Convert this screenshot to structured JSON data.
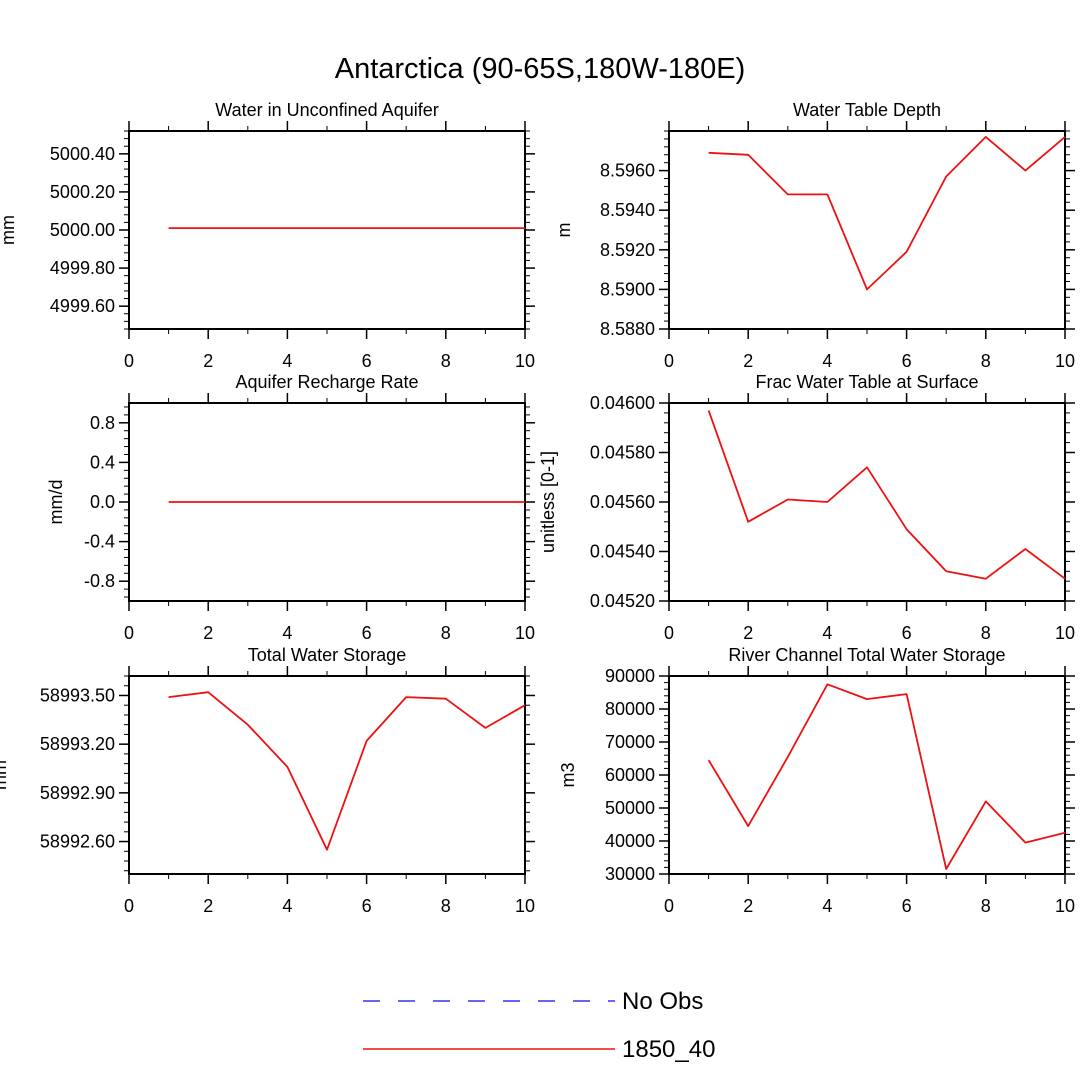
{
  "figure": {
    "title": "Antarctica (90-65S,180W-180E)",
    "line_colors": {
      "obs": "#3333ee",
      "model": "#ee1111"
    }
  },
  "legend": {
    "entries": [
      {
        "label": "No Obs",
        "style": "dashed",
        "color": "#3333ee"
      },
      {
        "label": "1850_40",
        "style": "solid",
        "color": "#ee1111"
      }
    ]
  },
  "chart_data": [
    {
      "type": "line",
      "title": "Water in Unconfined Aquifer",
      "xlabel": "",
      "ylabel": "mm",
      "xlim": [
        0,
        10
      ],
      "ylim": [
        4999.48,
        5000.52
      ],
      "xticks": [
        "0",
        "2",
        "4",
        "6",
        "8",
        "10"
      ],
      "yticks": [
        "4999.60",
        "4999.80",
        "5000.00",
        "5000.20",
        "5000.40"
      ],
      "series": [
        {
          "name": "1850_40",
          "x": [
            1,
            2,
            3,
            4,
            5,
            6,
            7,
            8,
            9,
            10
          ],
          "values": [
            5000.01,
            5000.01,
            5000.01,
            5000.01,
            5000.01,
            5000.01,
            5000.01,
            5000.01,
            5000.01,
            5000.01
          ]
        }
      ]
    },
    {
      "type": "line",
      "title": "Water Table Depth",
      "xlabel": "",
      "ylabel": "m",
      "xlim": [
        0,
        10
      ],
      "ylim": [
        8.588,
        8.598
      ],
      "xticks": [
        "0",
        "2",
        "4",
        "6",
        "8",
        "10"
      ],
      "yticks": [
        "8.5880",
        "8.5900",
        "8.5920",
        "8.5940",
        "8.5960"
      ],
      "series": [
        {
          "name": "1850_40",
          "x": [
            1,
            2,
            3,
            4,
            5,
            6,
            7,
            8,
            9,
            10
          ],
          "values": [
            8.5969,
            8.5968,
            8.5948,
            8.5948,
            8.59,
            8.5919,
            8.5957,
            8.5977,
            8.596,
            8.5977
          ]
        }
      ]
    },
    {
      "type": "line",
      "title": "Aquifer Recharge Rate",
      "xlabel": "",
      "ylabel": "mm/d",
      "xlim": [
        0,
        10
      ],
      "ylim": [
        -1,
        1
      ],
      "xticks": [
        "0",
        "2",
        "4",
        "6",
        "8",
        "10"
      ],
      "yticks": [
        "-0.8",
        "-0.4",
        "0.0",
        "0.4",
        "0.8"
      ],
      "series": [
        {
          "name": "1850_40",
          "x": [
            1,
            2,
            3,
            4,
            5,
            6,
            7,
            8,
            9,
            10
          ],
          "values": [
            0,
            0,
            0,
            0,
            0,
            0,
            0,
            0,
            0,
            0
          ]
        }
      ]
    },
    {
      "type": "line",
      "title": "Frac Water Table at Surface",
      "xlabel": "",
      "ylabel": "unitless [0-1]",
      "xlim": [
        0,
        10
      ],
      "ylim": [
        0.0452,
        0.046
      ],
      "xticks": [
        "0",
        "2",
        "4",
        "6",
        "8",
        "10"
      ],
      "yticks": [
        "0.04520",
        "0.04540",
        "0.04560",
        "0.04580",
        "0.04600"
      ],
      "series": [
        {
          "name": "1850_40",
          "x": [
            1,
            2,
            3,
            4,
            5,
            6,
            7,
            8,
            9,
            10
          ],
          "values": [
            0.04597,
            0.04552,
            0.04561,
            0.0456,
            0.04574,
            0.04549,
            0.04532,
            0.04529,
            0.04541,
            0.04529
          ]
        }
      ]
    },
    {
      "type": "line",
      "title": "Total Water Storage",
      "xlabel": "",
      "ylabel": "mm",
      "xlim": [
        0,
        10
      ],
      "ylim": [
        58992.4,
        58993.62
      ],
      "xticks": [
        "0",
        "2",
        "4",
        "6",
        "8",
        "10"
      ],
      "yticks": [
        "58992.60",
        "58992.90",
        "58993.20",
        "58993.50"
      ],
      "series": [
        {
          "name": "1850_40",
          "x": [
            1,
            2,
            3,
            4,
            5,
            6,
            7,
            8,
            9,
            10
          ],
          "values": [
            58993.49,
            58993.52,
            58993.32,
            58993.06,
            58992.55,
            58993.22,
            58993.49,
            58993.48,
            58993.3,
            58993.44
          ]
        }
      ]
    },
    {
      "type": "line",
      "title": "River Channel Total Water Storage",
      "xlabel": "",
      "ylabel": "m3",
      "xlim": [
        0,
        10
      ],
      "ylim": [
        30000,
        90000
      ],
      "xticks": [
        "0",
        "2",
        "4",
        "6",
        "8",
        "10"
      ],
      "yticks": [
        "30000",
        "40000",
        "50000",
        "60000",
        "70000",
        "80000",
        "90000"
      ],
      "series": [
        {
          "name": "1850_40",
          "x": [
            1,
            2,
            3,
            4,
            5,
            6,
            7,
            8,
            9,
            10
          ],
          "values": [
            64500,
            44500,
            65500,
            87500,
            83000,
            84500,
            31500,
            52000,
            39500,
            42500
          ]
        }
      ]
    }
  ]
}
